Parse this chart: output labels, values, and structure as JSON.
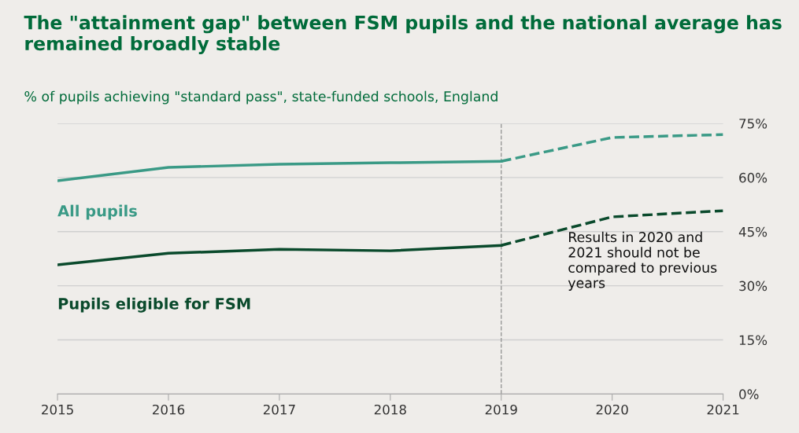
{
  "chart_data": {
    "type": "line",
    "title": "The \"attainment gap\" between FSM pupils and the national average has remained broadly stable",
    "subtitle": "% of pupils achieving \"standard pass\", state-funded schools, England",
    "x": [
      2015,
      2016,
      2017,
      2018,
      2019,
      2020,
      2021
    ],
    "series": [
      {
        "name": "All pupils",
        "color": "#3a9a86",
        "line_style": "solid",
        "values": [
          59.1,
          62.8,
          63.7,
          64.1,
          64.5,
          null,
          null
        ]
      },
      {
        "color": "#3a9a86",
        "line_style": "dashed",
        "values": [
          null,
          null,
          null,
          null,
          64.5,
          71.1,
          71.9
        ]
      },
      {
        "name": "Pupils eligible for FSM",
        "color": "#0a4a2c",
        "line_style": "solid",
        "values": [
          35.8,
          39.0,
          40.1,
          39.7,
          41.2,
          null,
          null
        ]
      },
      {
        "color": "#0a4a2c",
        "line_style": "dashed",
        "values": [
          null,
          null,
          null,
          null,
          41.2,
          49.1,
          50.8
        ]
      }
    ],
    "xlim": [
      2015,
      2021
    ],
    "xticks": [
      2015,
      2016,
      2017,
      2018,
      2019,
      2020,
      2021
    ],
    "ylim": [
      0,
      75
    ],
    "yticks": [
      {
        "value": 0,
        "label": "0%"
      },
      {
        "value": 15,
        "label": "15%"
      },
      {
        "value": 30,
        "label": "30%"
      },
      {
        "value": 45,
        "label": "45%"
      },
      {
        "value": 60,
        "label": "60%"
      },
      {
        "value": 75,
        "label": "75%"
      }
    ],
    "grid": "y",
    "legend": false,
    "marker": "none",
    "ref_lines": [
      {
        "axis": "x",
        "value": 2019,
        "color": "#999999",
        "line_style": "dashed"
      }
    ],
    "annotations": [
      {
        "text": "Results in 2020 and 2021 should not be compared to previous years",
        "x": 2019.6,
        "y": 45
      }
    ]
  }
}
